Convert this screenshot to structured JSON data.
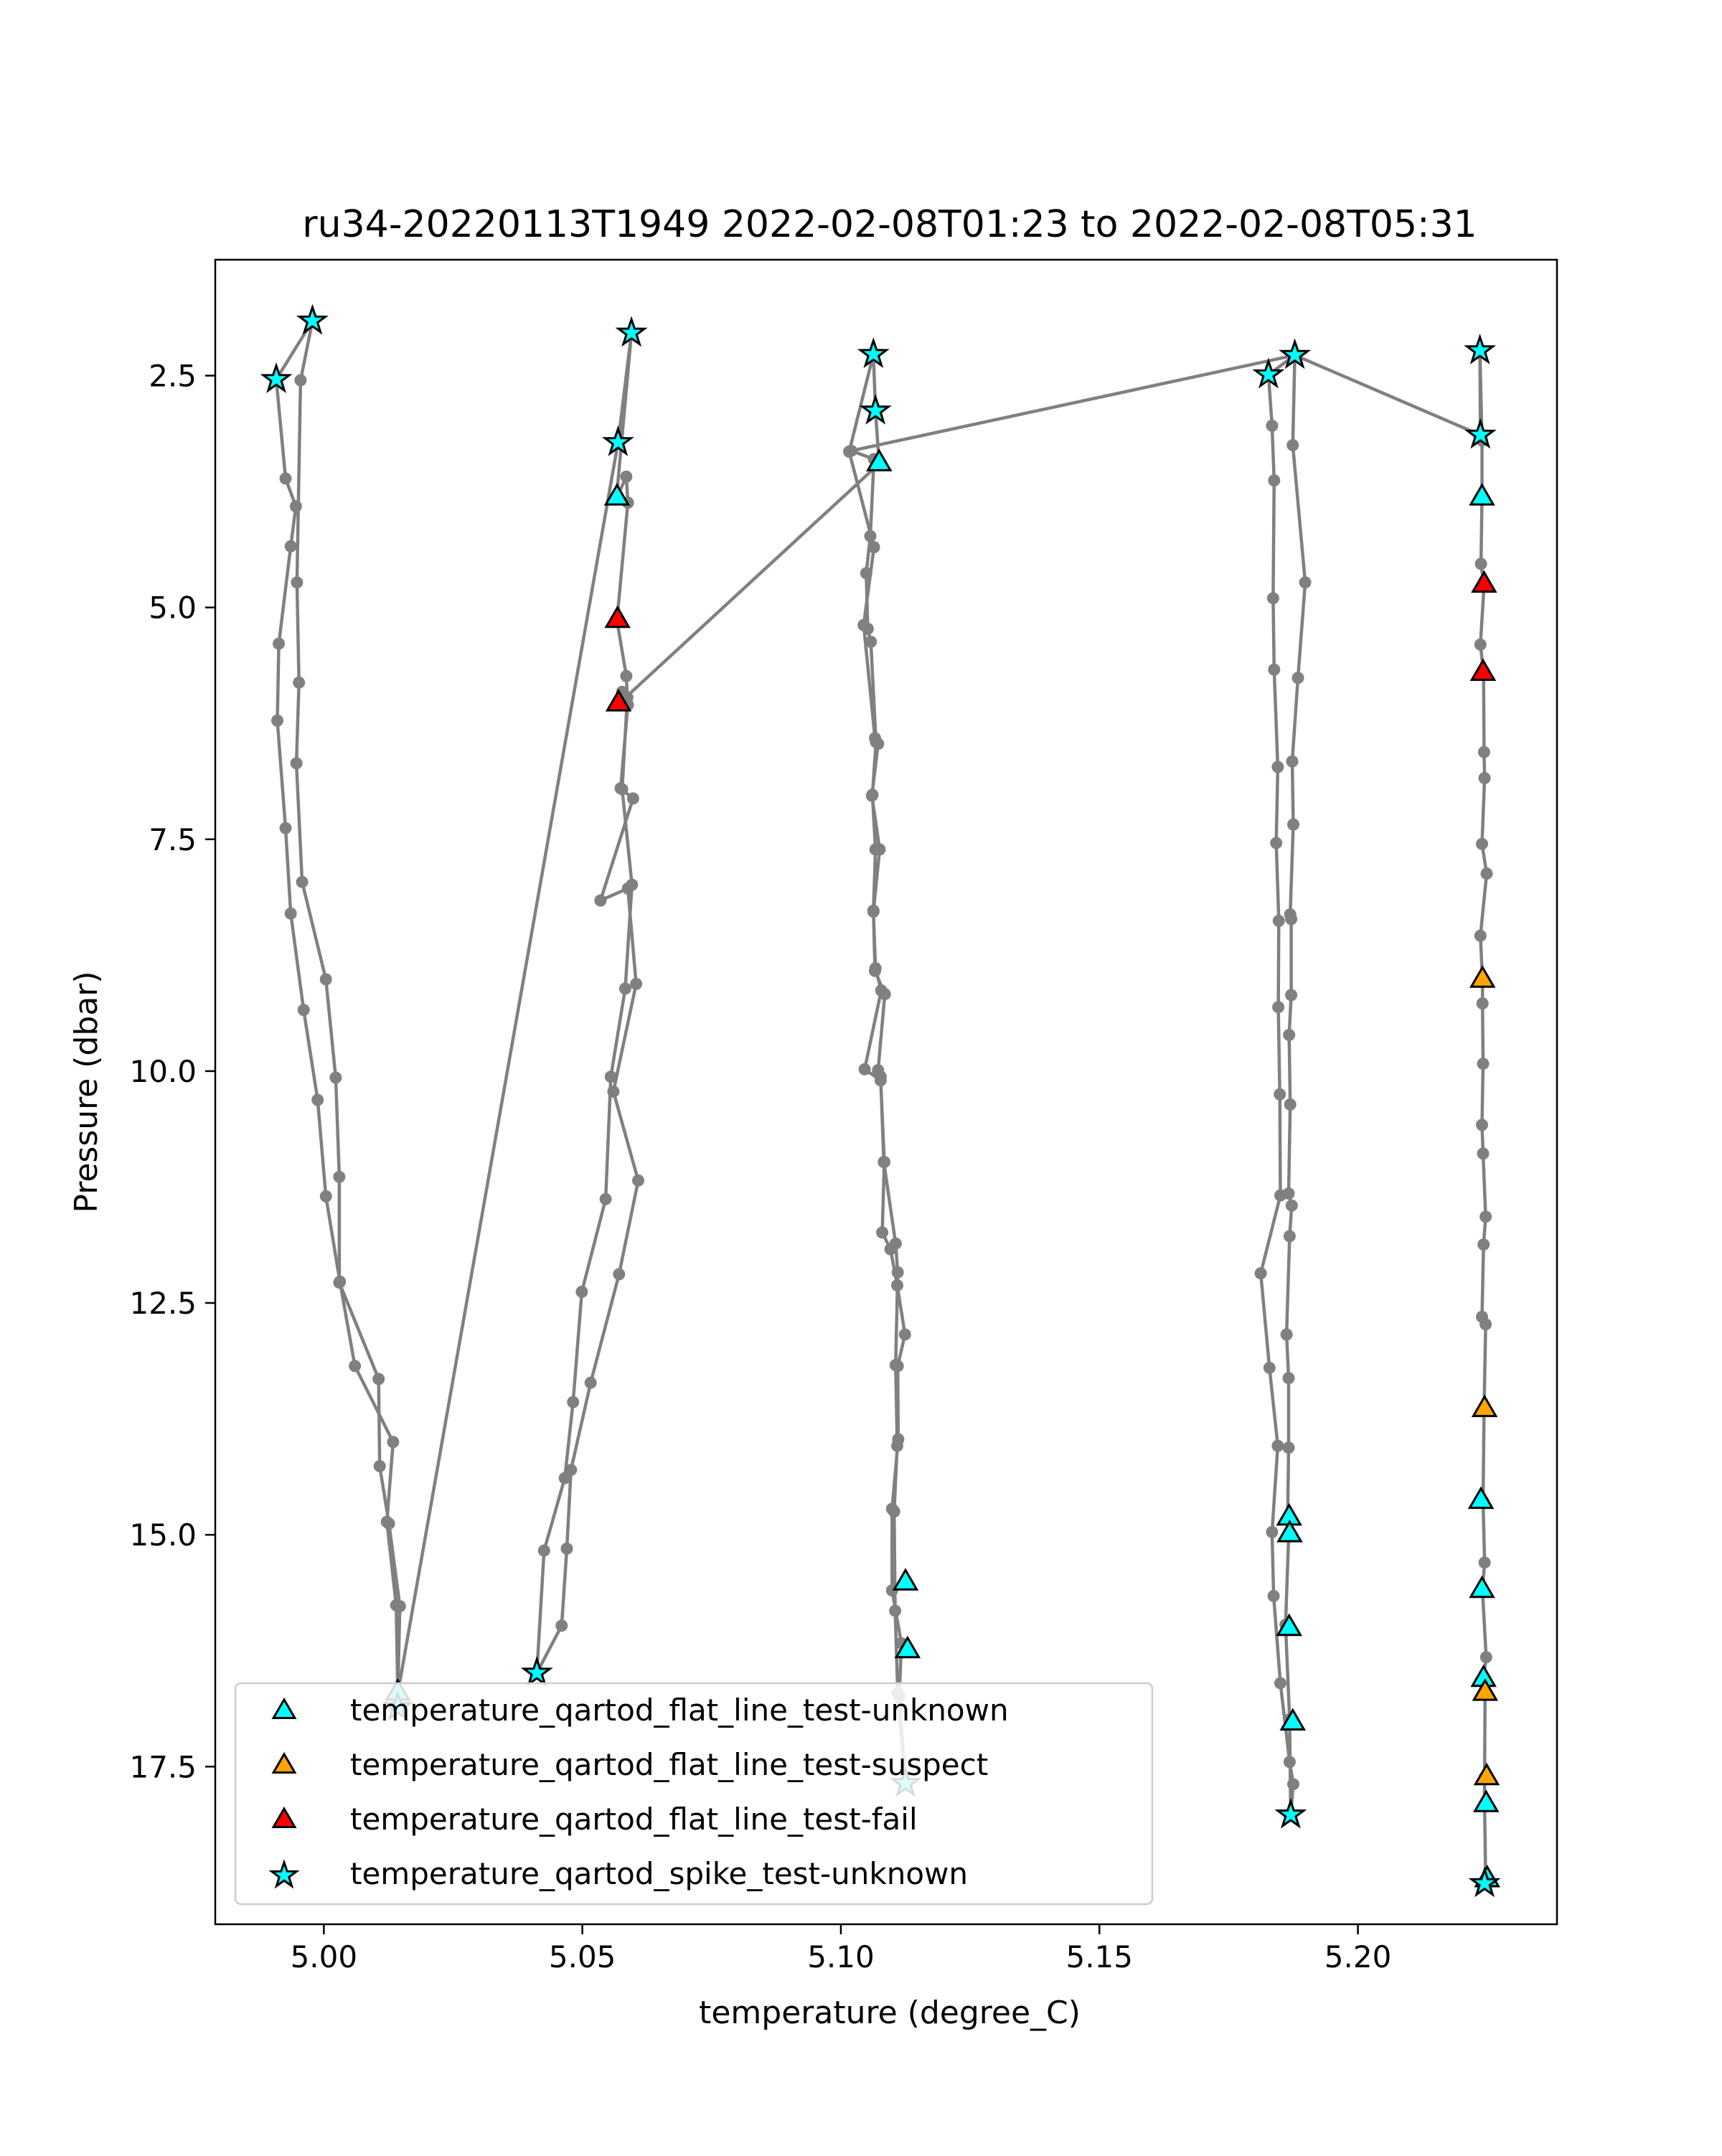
{
  "chart_data": {
    "type": "scatter",
    "title": "ru34-20220113T1949 2022-02-08T01:23 to 2022-02-08T05:31",
    "xlabel": "temperature (degree_C)",
    "ylabel": "Pressure (dbar)",
    "xlim": [
      4.979,
      5.2385
    ],
    "ylim": [
      19.2,
      1.25
    ],
    "y_inverted": true,
    "grid": false,
    "x_ticks": [
      "5.00",
      "5.05",
      "5.10",
      "5.15",
      "5.20"
    ],
    "x_tick_values": [
      5.0,
      5.05,
      5.1,
      5.15,
      5.2
    ],
    "y_ticks": [
      "2.5",
      "5.0",
      "7.5",
      "10.0",
      "12.5",
      "15.0",
      "17.5"
    ],
    "y_tick_values": [
      2.5,
      5.0,
      7.5,
      10.0,
      12.5,
      15.0,
      17.5
    ],
    "line_color": "#808080",
    "legend_position": "lower left",
    "profile_path": [
      [
        5.0143,
        16.86
      ],
      [
        5.0143,
        16.71
      ],
      [
        5.0147,
        15.77
      ],
      [
        5.0126,
        14.88
      ],
      [
        5.0108,
        14.26
      ],
      [
        5.0106,
        13.32
      ],
      [
        5.003,
        12.28
      ],
      [
        5.003,
        11.14
      ],
      [
        5.0023,
        10.07
      ],
      [
        5.0004,
        9.01
      ],
      [
        4.9958,
        7.96
      ],
      [
        4.9947,
        6.68
      ],
      [
        4.9952,
        5.81
      ],
      [
        4.9948,
        4.73
      ],
      [
        4.9955,
        2.55
      ],
      [
        4.9978,
        1.91
      ],
      [
        4.9908,
        2.54
      ],
      [
        4.9926,
        3.61
      ],
      [
        4.9946,
        3.91
      ],
      [
        4.9936,
        4.34
      ],
      [
        4.9913,
        5.39
      ],
      [
        4.991,
        6.22
      ],
      [
        4.9926,
        7.38
      ],
      [
        4.9936,
        8.3
      ],
      [
        4.9961,
        9.34
      ],
      [
        4.9988,
        10.31
      ],
      [
        5.0004,
        11.35
      ],
      [
        5.0031,
        12.27
      ],
      [
        5.006,
        13.18
      ],
      [
        5.0134,
        14.0
      ],
      [
        5.0122,
        14.86
      ],
      [
        5.014,
        15.76
      ],
      [
        5.0143,
        16.71
      ],
      [
        5.0569,
        3.22
      ],
      [
        5.0595,
        2.04
      ],
      [
        5.0566,
        3.82
      ],
      [
        5.0585,
        3.59
      ],
      [
        5.0588,
        3.87
      ],
      [
        5.0567,
        5.14
      ],
      [
        5.0585,
        5.74
      ],
      [
        5.0587,
        5.97
      ],
      [
        5.0577,
        6.96
      ],
      [
        5.0596,
        7.99
      ],
      [
        5.0583,
        9.11
      ],
      [
        5.0555,
        10.06
      ],
      [
        5.0545,
        11.38
      ],
      [
        5.0499,
        12.38
      ],
      [
        5.0482,
        13.57
      ],
      [
        5.0466,
        14.39
      ],
      [
        5.0426,
        15.17
      ],
      [
        5.0412,
        16.49
      ],
      [
        5.046,
        15.98
      ],
      [
        5.047,
        15.15
      ],
      [
        5.0478,
        14.3
      ],
      [
        5.0516,
        13.36
      ],
      [
        5.0571,
        12.19
      ],
      [
        5.0608,
        11.18
      ],
      [
        5.056,
        10.22
      ],
      [
        5.0604,
        9.06
      ],
      [
        5.0588,
        8.03
      ],
      [
        5.0535,
        8.16
      ],
      [
        5.0598,
        7.06
      ],
      [
        5.0574,
        6.95
      ],
      [
        5.0588,
        6.05
      ],
      [
        5.0577,
        5.91
      ],
      [
        5.057,
        6.04
      ],
      [
        5.1074,
        3.45
      ],
      [
        5.1067,
        2.88
      ],
      [
        5.1063,
        2.27
      ],
      [
        5.1016,
        3.32
      ],
      [
        5.1064,
        4.35
      ],
      [
        5.1044,
        5.19
      ],
      [
        5.1066,
        6.41
      ],
      [
        5.1072,
        6.47
      ],
      [
        5.106,
        7.03
      ],
      [
        5.1075,
        7.61
      ],
      [
        5.1063,
        8.28
      ],
      [
        5.1067,
        8.89
      ],
      [
        5.1078,
        9.13
      ],
      [
        5.1046,
        9.98
      ],
      [
        5.1077,
        10.1
      ],
      [
        5.1084,
        10.98
      ],
      [
        5.108,
        11.74
      ],
      [
        5.1096,
        11.92
      ],
      [
        5.1109,
        12.31
      ],
      [
        5.1124,
        12.84
      ],
      [
        5.111,
        13.18
      ],
      [
        5.1111,
        13.97
      ],
      [
        5.1099,
        14.72
      ],
      [
        5.1099,
        15.6
      ],
      [
        5.1117,
        16.17
      ],
      [
        5.1113,
        16.74
      ],
      [
        5.1125,
        17.68
      ],
      [
        5.111,
        16.71
      ],
      [
        5.1105,
        15.82
      ],
      [
        5.1103,
        14.75
      ],
      [
        5.1109,
        14.04
      ],
      [
        5.1106,
        13.17
      ],
      [
        5.111,
        12.17
      ],
      [
        5.1106,
        11.86
      ],
      [
        5.1083,
        10.98
      ],
      [
        5.1077,
        10.06
      ],
      [
        5.1072,
        9.99
      ],
      [
        5.1085,
        9.17
      ],
      [
        5.1066,
        8.92
      ],
      [
        5.1063,
        8.27
      ],
      [
        5.1067,
        7.61
      ],
      [
        5.1061,
        7.02
      ],
      [
        5.1068,
        6.45
      ],
      [
        5.1058,
        5.37
      ],
      [
        5.1052,
        5.23
      ],
      [
        5.1049,
        4.63
      ],
      [
        5.1057,
        4.23
      ],
      [
        5.1064,
        3.4
      ],
      [
        5.102,
        3.31
      ],
      [
        5.1878,
        2.28
      ],
      [
        5.1827,
        2.49
      ],
      [
        5.1834,
        3.04
      ],
      [
        5.1838,
        3.63
      ],
      [
        5.1836,
        4.9
      ],
      [
        5.1838,
        5.67
      ],
      [
        5.1845,
        6.72
      ],
      [
        5.1842,
        7.54
      ],
      [
        5.1847,
        8.38
      ],
      [
        5.1846,
        9.31
      ],
      [
        5.1849,
        10.25
      ],
      [
        5.185,
        11.34
      ],
      [
        5.1812,
        12.18
      ],
      [
        5.1829,
        13.2
      ],
      [
        5.1845,
        14.04
      ],
      [
        5.1834,
        14.97
      ],
      [
        5.1837,
        15.66
      ],
      [
        5.185,
        16.6
      ],
      [
        5.1868,
        17.45
      ],
      [
        5.1875,
        17.69
      ],
      [
        5.187,
        18.02
      ],
      [
        5.1868,
        16.99
      ],
      [
        5.186,
        15.97
      ],
      [
        5.1866,
        15.02
      ],
      [
        5.1864,
        14.83
      ],
      [
        5.1866,
        14.06
      ],
      [
        5.1866,
        13.31
      ],
      [
        5.1862,
        12.84
      ],
      [
        5.1868,
        11.78
      ],
      [
        5.1872,
        11.45
      ],
      [
        5.1866,
        11.32
      ],
      [
        5.1869,
        10.36
      ],
      [
        5.1867,
        9.61
      ],
      [
        5.1871,
        9.18
      ],
      [
        5.1871,
        8.36
      ],
      [
        5.1869,
        8.31
      ],
      [
        5.1875,
        7.34
      ],
      [
        5.1873,
        6.66
      ],
      [
        5.1884,
        5.76
      ],
      [
        5.1898,
        4.73
      ],
      [
        5.1874,
        3.25
      ],
      [
        5.1878,
        2.28
      ],
      [
        5.2237,
        3.14
      ],
      [
        5.2236,
        2.23
      ],
      [
        5.224,
        3.2
      ],
      [
        5.224,
        3.82
      ],
      [
        5.2238,
        4.53
      ],
      [
        5.2244,
        4.76
      ],
      [
        5.2237,
        5.4
      ],
      [
        5.2243,
        5.71
      ],
      [
        5.2244,
        6.56
      ],
      [
        5.2245,
        6.84
      ],
      [
        5.224,
        7.55
      ],
      [
        5.2249,
        7.87
      ],
      [
        5.2237,
        8.54
      ],
      [
        5.2241,
        9.02
      ],
      [
        5.2241,
        9.27
      ],
      [
        5.2242,
        9.92
      ],
      [
        5.224,
        10.58
      ],
      [
        5.2242,
        10.89
      ],
      [
        5.2247,
        11.57
      ],
      [
        5.2243,
        11.87
      ],
      [
        5.224,
        12.65
      ],
      [
        5.2247,
        12.73
      ],
      [
        5.2244,
        13.65
      ],
      [
        5.2242,
        14.64
      ],
      [
        5.2245,
        15.3
      ],
      [
        5.2241,
        15.6
      ],
      [
        5.2248,
        16.32
      ],
      [
        5.2243,
        16.56
      ],
      [
        5.2246,
        16.71
      ],
      [
        5.2245,
        17.62
      ],
      [
        5.2245,
        17.91
      ],
      [
        5.2247,
        18.72
      ],
      [
        5.2245,
        18.76
      ]
    ],
    "series": [
      {
        "name": "temperature_qartod_flat_line_test-unknown",
        "marker": "triangle",
        "color": "#00ffff",
        "points": [
          [
            5.0143,
            16.71
          ],
          [
            5.0567,
            3.82
          ],
          [
            5.1074,
            3.45
          ],
          [
            5.1125,
            15.52
          ],
          [
            5.1129,
            16.25
          ],
          [
            5.1867,
            14.82
          ],
          [
            5.1868,
            15.0
          ],
          [
            5.1867,
            16.01
          ],
          [
            5.1874,
            17.03
          ],
          [
            5.224,
            3.82
          ],
          [
            5.2238,
            14.64
          ],
          [
            5.224,
            15.6
          ],
          [
            5.2243,
            16.56
          ],
          [
            5.2248,
            17.91
          ],
          [
            5.225,
            18.72
          ]
        ]
      },
      {
        "name": "temperature_qartod_flat_line_test-suspect",
        "marker": "triangle",
        "color": "#ffa500",
        "points": [
          [
            5.2241,
            9.02
          ],
          [
            5.2245,
            13.65
          ],
          [
            5.2246,
            16.71
          ],
          [
            5.2249,
            17.62
          ]
        ]
      },
      {
        "name": "temperature_qartod_flat_line_test-fail",
        "marker": "triangle",
        "color": "#ff0000",
        "points": [
          [
            5.0568,
            5.14
          ],
          [
            5.057,
            6.04
          ],
          [
            5.2244,
            4.76
          ],
          [
            5.2242,
            5.71
          ]
        ]
      },
      {
        "name": "temperature_qartod_spike_test-unknown",
        "marker": "star",
        "color": "#00ffff",
        "points": [
          [
            4.9978,
            1.91
          ],
          [
            4.9908,
            2.54
          ],
          [
            5.0143,
            16.86
          ],
          [
            5.0595,
            2.04
          ],
          [
            5.0569,
            3.22
          ],
          [
            5.0412,
            16.49
          ],
          [
            5.1063,
            2.27
          ],
          [
            5.1067,
            2.88
          ],
          [
            5.1125,
            17.68
          ],
          [
            5.1878,
            2.28
          ],
          [
            5.1827,
            2.49
          ],
          [
            5.187,
            18.02
          ],
          [
            5.2236,
            2.23
          ],
          [
            5.2237,
            3.14
          ],
          [
            5.2245,
            18.76
          ]
        ]
      }
    ]
  }
}
